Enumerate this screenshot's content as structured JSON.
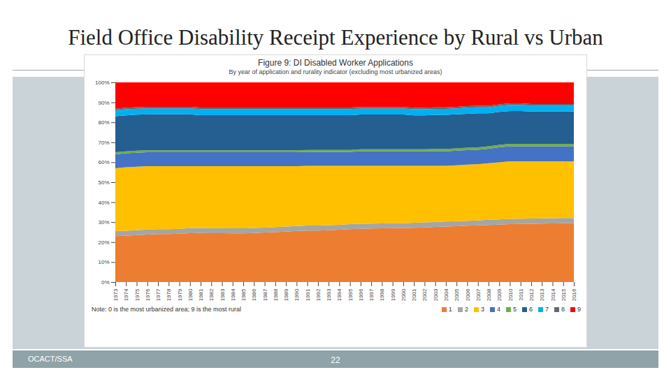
{
  "slide": {
    "title": "Field Office Disability Receipt Experience by Rural vs Urban",
    "footer": "OCACT/SSA",
    "page_number": "22"
  },
  "chart_data": {
    "type": "area",
    "title": "Figure 9: DI Disabled Worker Applications",
    "subtitle": "By year of application and rurality indicator (excluding most urbanized areas)",
    "note": "Note: 0 is the most urbanized area; 9 is the most rural",
    "stacked": true,
    "grid": false,
    "legend": "bottom-right",
    "x": [
      1973,
      1974,
      1975,
      1976,
      1977,
      1978,
      1979,
      1980,
      1981,
      1982,
      1983,
      1984,
      1985,
      1986,
      1987,
      1988,
      1989,
      1990,
      1991,
      1992,
      1993,
      1994,
      1995,
      1996,
      1997,
      1998,
      1999,
      2000,
      2001,
      2002,
      2003,
      2004,
      2005,
      2006,
      2007,
      2008,
      2009,
      2010,
      2011,
      2012,
      2013,
      2014,
      2015,
      2016
    ],
    "xlim": [
      1973,
      2016
    ],
    "xticks": [
      1973,
      1974,
      1975,
      1976,
      1977,
      1978,
      1979,
      1980,
      1981,
      1982,
      1983,
      1984,
      1985,
      1986,
      1987,
      1988,
      1989,
      1990,
      1991,
      1992,
      1993,
      1994,
      1995,
      1996,
      1997,
      1998,
      1999,
      2000,
      2001,
      2002,
      2003,
      2004,
      2005,
      2006,
      2007,
      2008,
      2009,
      2010,
      2011,
      2012,
      2013,
      2014,
      2015,
      2016
    ],
    "ylim": [
      0,
      100
    ],
    "yticks": [
      {
        "value": 0,
        "label": "0%"
      },
      {
        "value": 10,
        "label": "10%"
      },
      {
        "value": 20,
        "label": "20%"
      },
      {
        "value": 30,
        "label": "30%"
      },
      {
        "value": 40,
        "label": "40%"
      },
      {
        "value": 50,
        "label": "50%"
      },
      {
        "value": 60,
        "label": "60%"
      },
      {
        "value": 70,
        "label": "70%"
      },
      {
        "value": 80,
        "label": "80%"
      },
      {
        "value": 90,
        "label": "90%"
      },
      {
        "value": 100,
        "label": "100%"
      }
    ],
    "series": [
      {
        "name": "1",
        "color": "#ed7d31",
        "values": [
          23.0,
          23.2,
          23.5,
          23.8,
          24.0,
          24.0,
          24.2,
          24.5,
          24.6,
          24.5,
          24.5,
          24.4,
          24.4,
          24.6,
          24.8,
          25.0,
          25.3,
          25.6,
          25.8,
          25.8,
          26.0,
          26.2,
          26.5,
          26.7,
          26.8,
          26.9,
          27.0,
          27.0,
          27.2,
          27.4,
          27.6,
          27.8,
          28.0,
          28.2,
          28.4,
          28.6,
          28.8,
          29.0,
          29.1,
          29.2,
          29.3,
          29.4,
          29.5,
          29.5
        ]
      },
      {
        "name": "2",
        "color": "#a5a5a5",
        "values": [
          2.5,
          2.5,
          2.5,
          2.5,
          2.5,
          2.5,
          2.5,
          2.5,
          2.5,
          2.5,
          2.5,
          2.5,
          2.5,
          2.5,
          2.5,
          2.5,
          2.5,
          2.5,
          2.5,
          2.5,
          2.5,
          2.5,
          2.5,
          2.5,
          2.5,
          2.5,
          2.5,
          2.5,
          2.5,
          2.5,
          2.5,
          2.5,
          2.5,
          2.5,
          2.5,
          2.6,
          2.6,
          2.6,
          2.6,
          2.6,
          2.6,
          2.6,
          2.6,
          2.6
        ]
      },
      {
        "name": "3",
        "color": "#ffc000",
        "values": [
          31.5,
          31.8,
          31.8,
          31.7,
          31.5,
          31.5,
          31.3,
          31.0,
          30.9,
          31.0,
          31.0,
          31.1,
          31.1,
          30.9,
          30.7,
          30.5,
          30.2,
          29.9,
          29.9,
          29.9,
          29.7,
          29.5,
          29.2,
          29.0,
          28.9,
          28.8,
          28.7,
          28.7,
          28.5,
          28.3,
          28.1,
          27.9,
          28.0,
          28.1,
          28.1,
          28.3,
          28.6,
          28.9,
          28.8,
          28.7,
          28.6,
          28.5,
          28.4,
          28.4
        ]
      },
      {
        "name": "4",
        "color": "#4472c4",
        "values": [
          7.0,
          7.0,
          7.0,
          7.0,
          7.0,
          7.0,
          7.0,
          7.0,
          7.0,
          7.0,
          7.0,
          7.0,
          7.0,
          7.0,
          7.0,
          7.0,
          7.0,
          7.0,
          7.0,
          7.0,
          7.0,
          7.0,
          7.0,
          7.3,
          7.3,
          7.3,
          7.3,
          7.3,
          7.3,
          7.3,
          7.3,
          7.3,
          7.3,
          7.3,
          7.3,
          7.3,
          7.5,
          7.5,
          7.5,
          7.5,
          7.5,
          7.5,
          7.5,
          7.5
        ]
      },
      {
        "name": "5",
        "color": "#70ad47",
        "values": [
          1.0,
          1.0,
          1.0,
          1.0,
          1.0,
          1.0,
          1.0,
          1.0,
          1.0,
          1.0,
          1.0,
          1.0,
          1.0,
          1.0,
          1.0,
          1.0,
          1.0,
          1.0,
          1.0,
          1.0,
          1.0,
          1.0,
          1.0,
          1.0,
          1.0,
          1.0,
          1.0,
          1.0,
          1.0,
          1.0,
          1.2,
          1.2,
          1.2,
          1.2,
          1.2,
          1.2,
          1.2,
          1.2,
          1.2,
          1.2,
          1.2,
          1.2,
          1.2,
          1.2
        ]
      },
      {
        "name": "6",
        "color": "#255e91",
        "values": [
          18.0,
          18.0,
          18.0,
          18.0,
          18.0,
          18.0,
          18.0,
          18.0,
          17.6,
          17.6,
          17.6,
          17.6,
          17.6,
          17.6,
          17.6,
          17.6,
          17.6,
          17.6,
          17.4,
          17.4,
          17.4,
          17.4,
          17.4,
          17.4,
          17.4,
          17.4,
          17.4,
          17.4,
          17.0,
          17.0,
          17.0,
          17.0,
          17.0,
          17.0,
          17.0,
          16.5,
          16.5,
          16.5,
          16.5,
          16.2,
          16.2,
          16.2,
          16.2,
          16.2
        ]
      },
      {
        "name": "7",
        "color": "#00b0f0",
        "values": [
          3.0,
          3.0,
          3.0,
          3.0,
          3.0,
          3.0,
          3.0,
          3.0,
          3.0,
          3.0,
          3.0,
          3.0,
          3.0,
          3.0,
          3.0,
          3.0,
          3.0,
          3.0,
          3.0,
          3.0,
          3.0,
          3.0,
          3.0,
          3.0,
          3.0,
          3.0,
          3.0,
          3.0,
          3.0,
          3.0,
          3.0,
          3.0,
          3.0,
          3.0,
          3.0,
          3.0,
          3.0,
          3.0,
          3.0,
          3.0,
          3.0,
          3.0,
          3.0,
          3.0
        ]
      },
      {
        "name": "8",
        "color": "#5f6b73",
        "values": [
          0.8,
          0.8,
          0.8,
          0.8,
          0.8,
          0.8,
          0.8,
          0.8,
          0.8,
          0.8,
          0.8,
          0.8,
          0.8,
          0.8,
          0.8,
          0.8,
          0.8,
          0.8,
          0.8,
          0.8,
          0.8,
          0.8,
          0.8,
          0.8,
          0.8,
          0.8,
          0.8,
          0.8,
          0.8,
          0.8,
          0.8,
          0.8,
          0.8,
          0.8,
          0.8,
          0.8,
          0.8,
          0.8,
          0.8,
          0.8,
          0.8,
          0.8,
          0.8,
          0.8
        ]
      },
      {
        "name": "9",
        "color": "#ff0000",
        "values": [
          13.2,
          12.7,
          12.4,
          12.2,
          12.2,
          12.2,
          12.2,
          12.2,
          12.6,
          12.6,
          12.6,
          12.6,
          12.6,
          12.6,
          12.6,
          12.6,
          12.6,
          12.6,
          12.6,
          12.6,
          12.6,
          12.6,
          12.6,
          12.3,
          12.3,
          12.3,
          12.3,
          12.3,
          12.7,
          12.7,
          12.5,
          12.5,
          12.2,
          11.9,
          11.7,
          11.7,
          11.0,
          10.5,
          10.5,
          10.8,
          10.8,
          10.8,
          10.8,
          10.8
        ]
      }
    ]
  }
}
